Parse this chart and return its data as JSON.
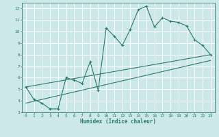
{
  "xlabel": "Humidex (Indice chaleur)",
  "bg_color": "#cce8e8",
  "grid_color": "#ffffff",
  "line_color": "#2a7a6a",
  "xlim": [
    -0.5,
    23.5
  ],
  "ylim": [
    3,
    12.5
  ],
  "xticks": [
    0,
    1,
    2,
    3,
    4,
    5,
    6,
    7,
    8,
    9,
    10,
    11,
    12,
    13,
    14,
    15,
    16,
    17,
    18,
    19,
    20,
    21,
    22,
    23
  ],
  "yticks": [
    3,
    4,
    5,
    6,
    7,
    8,
    9,
    10,
    11,
    12
  ],
  "line1_x": [
    0,
    1,
    2,
    3,
    4,
    5,
    6,
    7,
    8,
    9,
    10,
    11,
    12,
    13,
    14,
    15,
    16,
    17,
    18,
    19,
    20,
    21,
    22,
    23
  ],
  "line1_y": [
    5.2,
    4.1,
    3.8,
    3.3,
    3.3,
    6.0,
    5.8,
    5.5,
    7.4,
    4.9,
    10.3,
    9.6,
    8.8,
    10.2,
    11.9,
    12.2,
    10.4,
    11.2,
    10.9,
    10.8,
    10.5,
    9.3,
    8.8,
    8.0
  ],
  "line2_x": [
    0,
    23
  ],
  "line2_y": [
    5.2,
    8.0
  ],
  "line3_x": [
    0,
    23
  ],
  "line3_y": [
    3.8,
    7.5
  ]
}
